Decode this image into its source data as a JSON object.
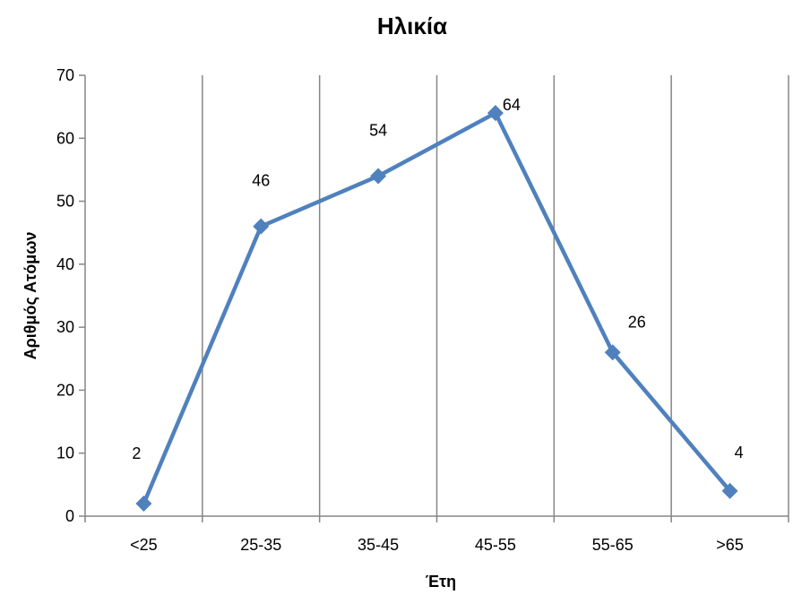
{
  "chart_data": {
    "type": "line",
    "title": "Ηλικία",
    "xlabel": "Έτη",
    "ylabel": "Αριθμός Ατόμων",
    "categories": [
      "<25",
      "25-35",
      "35-45",
      "45-55",
      "55-65",
      ">65"
    ],
    "series": [
      {
        "values": [
          2,
          46,
          54,
          64,
          26,
          4
        ],
        "color": "#4F81BD"
      }
    ],
    "data_labels": [
      "2",
      "46",
      "54",
      "64",
      "26",
      "4"
    ],
    "ylim": [
      0,
      70
    ],
    "y_ticks": [
      "0",
      "10",
      "20",
      "30",
      "40",
      "50",
      "60",
      "70"
    ],
    "grid": "vertical",
    "legend": "none",
    "marker": "diamond"
  }
}
